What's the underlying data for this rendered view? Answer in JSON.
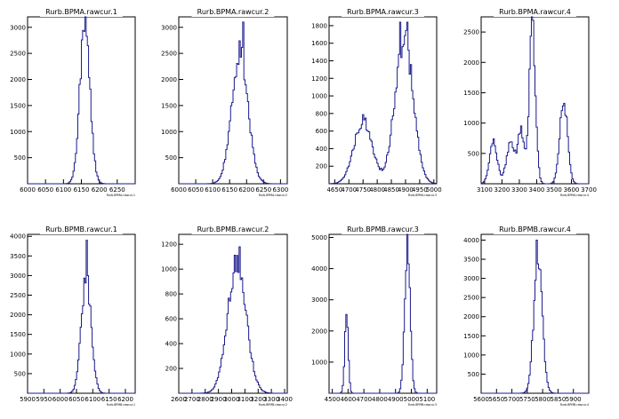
{
  "chart_data": [
    {
      "type": "histogram",
      "title": "Rurb.BPMA.rawcur.1",
      "xlabel": "Rurb.BPMA.rawcur.1",
      "xlim": [
        6000,
        6300
      ],
      "ylim": [
        0,
        3200
      ],
      "xticks": [
        "6000",
        "6050",
        "6100",
        "6150",
        "6200",
        "6250"
      ],
      "yticks": [
        "500",
        "1000",
        "1500",
        "2000",
        "2500",
        "3000"
      ],
      "peaks": [
        {
          "x": 6160,
          "y": 3100,
          "sigma": 14
        }
      ]
    },
    {
      "type": "histogram",
      "title": "Rurb.BPMA.rawcur.2",
      "xlabel": "Rurb.BPMA.rawcur.2",
      "xlim": [
        6000,
        6320
      ],
      "ylim": [
        0,
        3200
      ],
      "xticks": [
        "6000",
        "6050",
        "6100",
        "6150",
        "6200",
        "6250",
        "6300"
      ],
      "yticks": [
        "500",
        "1000",
        "1500",
        "2000",
        "2500",
        "3000"
      ],
      "peaks": [
        {
          "x": 6180,
          "y": 2500,
          "sigma": 24
        }
      ],
      "spikes": [
        {
          "x": 6190,
          "y": 3100
        }
      ]
    },
    {
      "type": "histogram",
      "title": "Rurb.BPMA.rawcur.3",
      "xlabel": "Rurb.BPMA.rawcur.3",
      "xlim": [
        4630,
        5010
      ],
      "ylim": [
        0,
        1900
      ],
      "xticks": [
        "4650",
        "4700",
        "4750",
        "4800",
        "4850",
        "4900",
        "4950",
        "5000"
      ],
      "yticks": [
        "200",
        "400",
        "600",
        "800",
        "1000",
        "1200",
        "1400",
        "1600",
        "1800"
      ],
      "peaks": [
        {
          "x": 4750,
          "y": 720,
          "sigma": 32
        },
        {
          "x": 4895,
          "y": 1650,
          "sigma": 32
        }
      ],
      "spikes": [
        {
          "x": 4880,
          "y": 1840
        },
        {
          "x": 4905,
          "y": 1840
        }
      ]
    },
    {
      "type": "histogram",
      "title": "Rurb.BPMA.rawcur.4",
      "xlabel": "Rurb.BPMA.rawcur.4",
      "xlim": [
        3080,
        3700
      ],
      "ylim": [
        0,
        2750
      ],
      "xticks": [
        "3100",
        "3200",
        "3300",
        "3400",
        "3500",
        "3600",
        "3700"
      ],
      "yticks": [
        "500",
        "1000",
        "1500",
        "2000",
        "2500"
      ],
      "peaks": [
        {
          "x": 3150,
          "y": 700,
          "sigma": 22
        },
        {
          "x": 3250,
          "y": 650,
          "sigma": 25
        },
        {
          "x": 3310,
          "y": 850,
          "sigma": 18
        },
        {
          "x": 3375,
          "y": 2600,
          "sigma": 18
        },
        {
          "x": 3555,
          "y": 1400,
          "sigma": 22
        }
      ]
    },
    {
      "type": "histogram",
      "title": "Rurb.BPMB.rawcur.1",
      "xlabel": "Rurb.BPMB.rawcur.1",
      "xlim": [
        5900,
        6230
      ],
      "ylim": [
        0,
        4050
      ],
      "xticks": [
        "5900",
        "5950",
        "6000",
        "6050",
        "6100",
        "6150",
        "6200"
      ],
      "yticks": [
        "500",
        "1000",
        "1500",
        "2000",
        "2500",
        "3000",
        "3500",
        "4000"
      ],
      "peaks": [
        {
          "x": 6080,
          "y": 3000,
          "sigma": 15
        }
      ],
      "spikes": [
        {
          "x": 6082,
          "y": 3900
        }
      ]
    },
    {
      "type": "histogram",
      "title": "Rurb.BPMB.rawcur.2",
      "xlabel": "Rurb.BPMB.rawcur.2",
      "xlim": [
        2600,
        3420
      ],
      "ylim": [
        0,
        1280
      ],
      "xticks": [
        "2600",
        "2700",
        "2800",
        "2900",
        "3000",
        "3100",
        "3200",
        "3300",
        "3400"
      ],
      "yticks": [
        "200",
        "400",
        "600",
        "800",
        "1000",
        "1200"
      ],
      "peaks": [
        {
          "x": 3040,
          "y": 1050,
          "sigma": 70
        }
      ],
      "spikes": [
        {
          "x": 3060,
          "y": 1180
        }
      ]
    },
    {
      "type": "histogram",
      "title": "Rurb.BPMB.rawcur.3",
      "xlabel": "Rurb.BPMB.rawcur.3",
      "xlim": [
        4480,
        5160
      ],
      "ylim": [
        0,
        5100
      ],
      "xticks": [
        "4500",
        "4600",
        "4700",
        "4800",
        "4900",
        "5000",
        "5100"
      ],
      "yticks": [
        "1000",
        "2000",
        "3000",
        "4000",
        "5000"
      ],
      "peaks": [
        {
          "x": 4590,
          "y": 2400,
          "sigma": 11
        },
        {
          "x": 4975,
          "y": 4800,
          "sigma": 17
        }
      ]
    },
    {
      "type": "histogram",
      "title": "Rurb.BPMB.rawcur.4",
      "xlabel": "Rurb.BPMB.rawcur.4",
      "xlim": [
        5600,
        5950
      ],
      "ylim": [
        0,
        4150
      ],
      "xticks": [
        "5600",
        "5650",
        "5700",
        "5750",
        "5800",
        "5850",
        "5900"
      ],
      "yticks": [
        "500",
        "1000",
        "1500",
        "2000",
        "2500",
        "3000",
        "3500",
        "4000"
      ],
      "peaks": [
        {
          "x": 5785,
          "y": 3400,
          "sigma": 14
        }
      ],
      "spikes": [
        {
          "x": 5780,
          "y": 4000
        }
      ]
    }
  ]
}
